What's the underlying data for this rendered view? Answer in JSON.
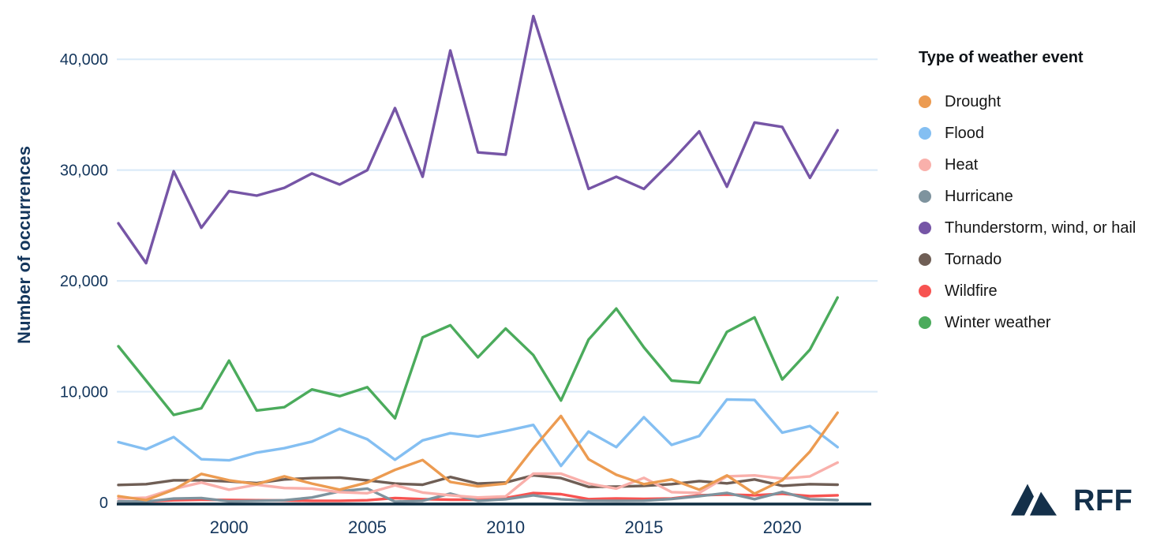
{
  "y_axis": {
    "label": "Number of occurrences",
    "tick_values": [
      0,
      10000,
      20000,
      30000,
      40000
    ],
    "text_color": "#14365C"
  },
  "x_axis": {
    "tick_values": [
      2000,
      2005,
      2010,
      2015,
      2020
    ],
    "text_color": "#14365C"
  },
  "grid": {
    "color": "#DBEBF8",
    "axis_line_color": "#0C2B40"
  },
  "legend": {
    "title": "Type of weather event"
  },
  "logo": {
    "text": "RFF",
    "color": "#14304A"
  },
  "chart_data": {
    "type": "line",
    "title": "",
    "xlabel": "",
    "ylabel": "Number of occurrences",
    "x": [
      1996,
      1997,
      1998,
      1999,
      2000,
      2001,
      2002,
      2003,
      2004,
      2005,
      2006,
      2007,
      2008,
      2009,
      2010,
      2011,
      2012,
      2013,
      2014,
      2015,
      2016,
      2017,
      2018,
      2019,
      2020,
      2021,
      2022
    ],
    "ylim": [
      0,
      45000
    ],
    "y_ticks": [
      0,
      10000,
      20000,
      30000,
      40000
    ],
    "x_ticks": [
      2000,
      2005,
      2010,
      2015,
      2020
    ],
    "grid": "horizontal-only",
    "legend_position": "right",
    "legend_title": "Type of weather event",
    "series": [
      {
        "name": "Drought",
        "color": "#EC9B51",
        "values": [
          570,
          215,
          1150,
          2580,
          2000,
          1650,
          2360,
          1700,
          1150,
          1800,
          2940,
          3830,
          1850,
          1450,
          1700,
          4900,
          7800,
          3900,
          2500,
          1650,
          2080,
          1150,
          2440,
          790,
          2000,
          4600,
          8100
        ]
      },
      {
        "name": "Flood",
        "color": "#84BFF2",
        "values": [
          5450,
          4800,
          5900,
          3900,
          3800,
          4500,
          4900,
          5500,
          6650,
          5700,
          3850,
          5600,
          6250,
          5950,
          6450,
          7000,
          3300,
          6400,
          5000,
          7700,
          5200,
          6000,
          9300,
          9250,
          6300,
          6900,
          5000
        ]
      },
      {
        "name": "Heat",
        "color": "#F9B0AB",
        "values": [
          360,
          430,
          1220,
          1800,
          1150,
          1600,
          1300,
          1250,
          930,
          830,
          1550,
          900,
          650,
          450,
          550,
          2600,
          2600,
          1700,
          1250,
          2220,
          930,
          860,
          2360,
          2440,
          2150,
          2360,
          3600
        ]
      },
      {
        "name": "Hurricane",
        "color": "#7E939E",
        "values": [
          100,
          80,
          350,
          400,
          100,
          150,
          200,
          450,
          1000,
          1250,
          70,
          150,
          800,
          140,
          290,
          650,
          290,
          150,
          140,
          160,
          310,
          570,
          860,
          300,
          950,
          290,
          215
        ]
      },
      {
        "name": "Thunderstorm, wind, or hail",
        "color": "#7655A6",
        "values": [
          25200,
          21600,
          29900,
          24800,
          28100,
          27700,
          28400,
          29700,
          28700,
          30000,
          35600,
          29400,
          40800,
          31600,
          31400,
          43900,
          36000,
          28300,
          29400,
          28300,
          30800,
          33500,
          28500,
          34300,
          33900,
          29300,
          33600
        ]
      },
      {
        "name": "Tornado",
        "color": "#6F5E55",
        "values": [
          1580,
          1650,
          2000,
          2000,
          1900,
          1750,
          2080,
          2200,
          2250,
          2000,
          1700,
          1600,
          2300,
          1700,
          1800,
          2450,
          2200,
          1400,
          1430,
          1500,
          1650,
          1930,
          1720,
          2080,
          1500,
          1650,
          1600
        ]
      },
      {
        "name": "Wildfire",
        "color": "#F75351",
        "values": [
          100,
          90,
          200,
          250,
          230,
          200,
          180,
          150,
          150,
          200,
          400,
          300,
          250,
          250,
          400,
          850,
          750,
          300,
          360,
          330,
          360,
          645,
          720,
          645,
          790,
          570,
          645
        ]
      },
      {
        "name": "Winter weather",
        "color": "#4BAB5C",
        "values": [
          14100,
          11000,
          7900,
          8500,
          12800,
          8300,
          8600,
          10200,
          9600,
          10400,
          7600,
          14900,
          16000,
          13100,
          15700,
          13300,
          9200,
          14700,
          17500,
          14000,
          11000,
          10800,
          15400,
          16700,
          11100,
          13800,
          18500
        ]
      }
    ]
  }
}
